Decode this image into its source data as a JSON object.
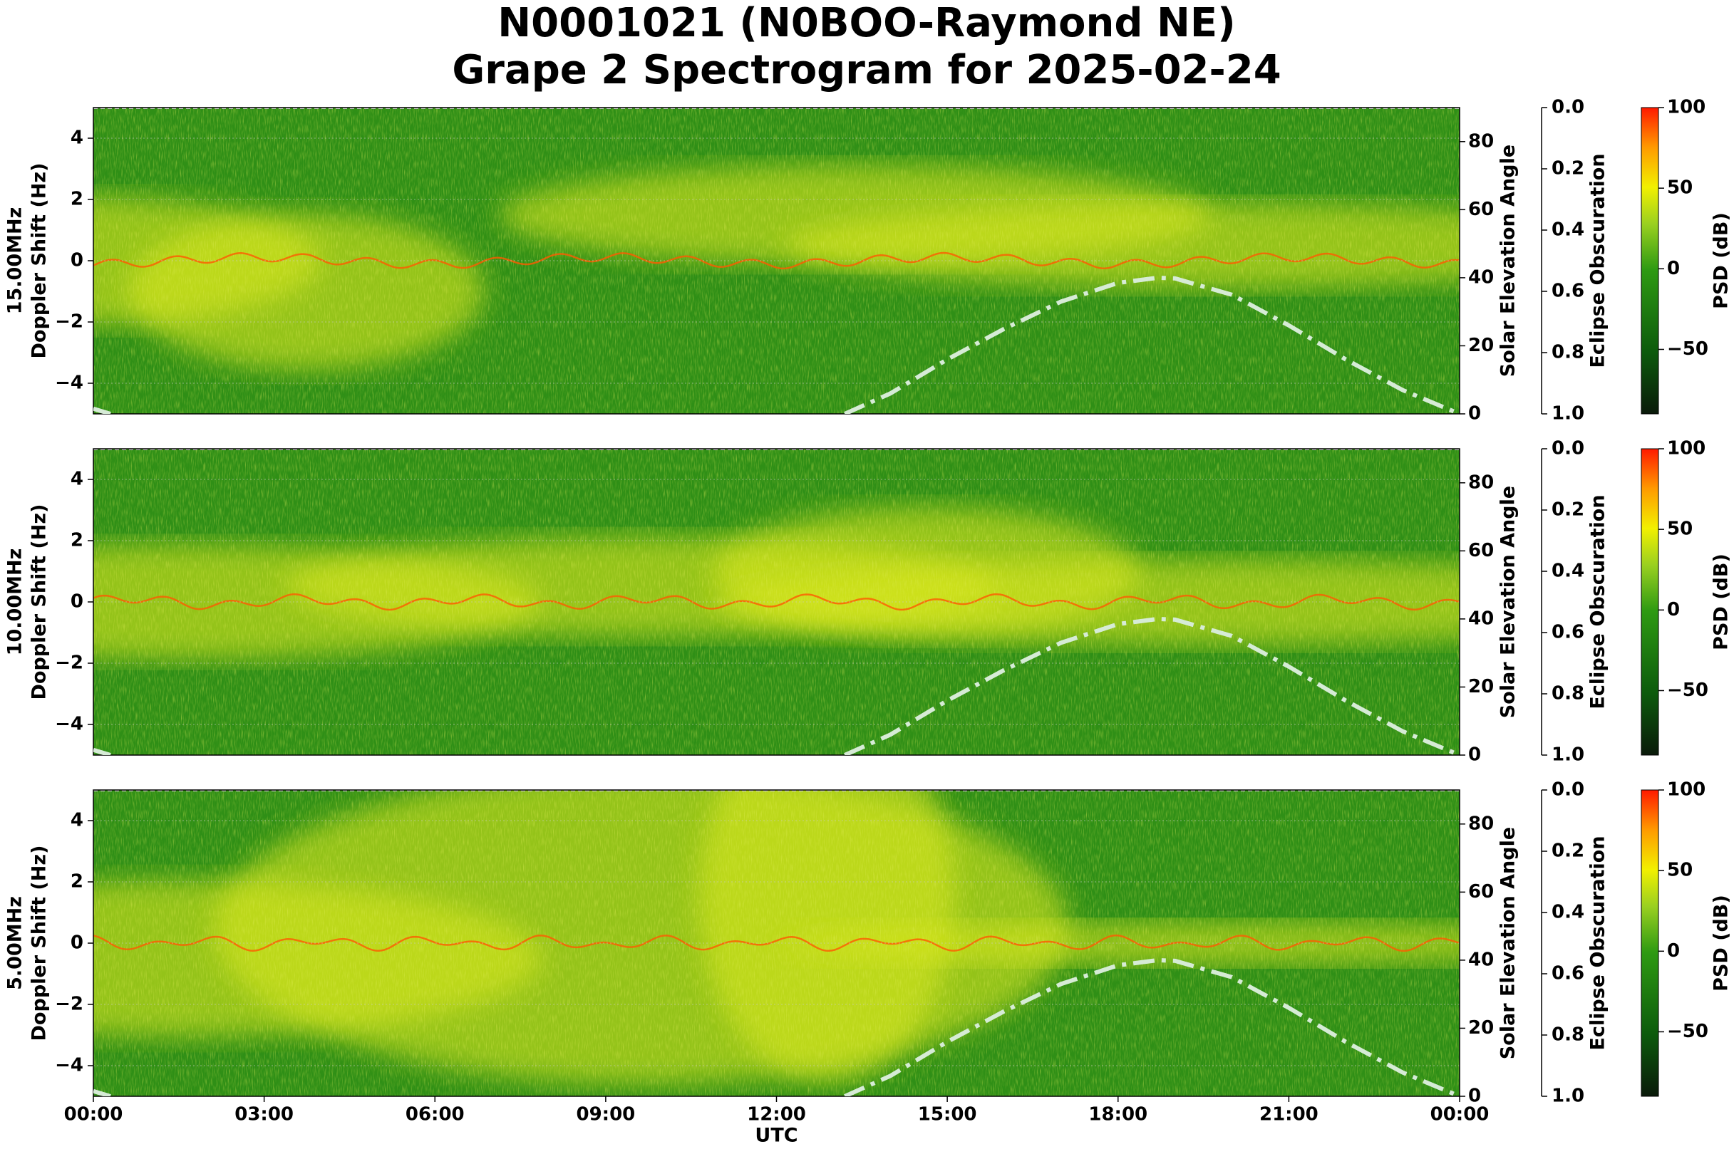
{
  "title": "N0001021 (N0BOO-Raymond NE)",
  "subtitle": "Grape 2 Spectrogram for 2025-02-24",
  "chart_data": [
    {
      "type": "spectrogram",
      "frequency_label": "15.00MHz",
      "ylabel": "Doppler Shift (Hz)",
      "xlim": [
        0,
        24
      ],
      "ylim": [
        -5,
        5
      ],
      "yticks": [
        {
          "value": -4,
          "label": "−4"
        },
        {
          "value": -2,
          "label": "−2"
        },
        0,
        2,
        4
      ],
      "grid": true,
      "y2label": "Solar Elevation Angle",
      "y2lim": [
        0,
        90
      ],
      "y2ticks": [
        0,
        20,
        40,
        60,
        80
      ],
      "y3label": "Eclipse Obscuration",
      "y3lim": [
        1,
        0
      ],
      "y3ticks": [
        {
          "value": 0,
          "label": "0.0"
        },
        {
          "value": 0.2,
          "label": "0.2"
        },
        {
          "value": 0.4,
          "label": "0.4"
        },
        {
          "value": 0.6,
          "label": "0.6"
        },
        {
          "value": 0.8,
          "label": "0.8"
        },
        {
          "value": 1,
          "label": "1.0"
        }
      ],
      "clabel": "PSD (dB)",
      "clim": [
        -90,
        100
      ],
      "cticks": [
        {
          "value": -50,
          "label": "−50"
        },
        0,
        50,
        100
      ],
      "solar_elevation": {
        "color": "#d6ebd6",
        "axis": "y2",
        "x": [
          0,
          0.3,
          6,
          13.2,
          14,
          15,
          16,
          17,
          18,
          18.7,
          19,
          20,
          21,
          22,
          23,
          24
        ],
        "values": [
          1.5,
          0,
          null,
          0,
          6,
          16,
          25,
          33,
          38.5,
          40,
          39.8,
          35,
          26,
          16,
          7,
          0
        ]
      }
    },
    {
      "type": "spectrogram",
      "frequency_label": "10.00MHz",
      "ylabel": "Doppler Shift (Hz)",
      "xlim": [
        0,
        24
      ],
      "ylim": [
        -5,
        5
      ],
      "yticks": [
        {
          "value": -4,
          "label": "−4"
        },
        {
          "value": -2,
          "label": "−2"
        },
        0,
        2,
        4
      ],
      "grid": true,
      "y2label": "Solar Elevation Angle",
      "y2lim": [
        0,
        90
      ],
      "y2ticks": [
        0,
        20,
        40,
        60,
        80
      ],
      "y3label": "Eclipse Obscuration",
      "y3lim": [
        1,
        0
      ],
      "y3ticks": [
        {
          "value": 0,
          "label": "0.0"
        },
        {
          "value": 0.2,
          "label": "0.2"
        },
        {
          "value": 0.4,
          "label": "0.4"
        },
        {
          "value": 0.6,
          "label": "0.6"
        },
        {
          "value": 0.8,
          "label": "0.8"
        },
        {
          "value": 1,
          "label": "1.0"
        }
      ],
      "clabel": "PSD (dB)",
      "clim": [
        -90,
        100
      ],
      "cticks": [
        {
          "value": -50,
          "label": "−50"
        },
        0,
        50,
        100
      ],
      "solar_elevation": {
        "color": "#d6ebd6",
        "axis": "y2",
        "x": [
          0,
          0.3,
          6,
          13.2,
          14,
          15,
          16,
          17,
          18,
          18.7,
          19,
          20,
          21,
          22,
          23,
          24
        ],
        "values": [
          1.5,
          0,
          null,
          0,
          6,
          16,
          25,
          33,
          38.5,
          40,
          39.8,
          35,
          26,
          16,
          7,
          0
        ]
      }
    },
    {
      "type": "spectrogram",
      "frequency_label": "5.00MHz",
      "ylabel": "Doppler Shift (Hz)",
      "xlim": [
        0,
        24
      ],
      "ylim": [
        -5,
        5
      ],
      "xlabel": "UTC",
      "xticks": [
        {
          "value": 0,
          "label": "00:00"
        },
        {
          "value": 3,
          "label": "03:00"
        },
        {
          "value": 6,
          "label": "06:00"
        },
        {
          "value": 9,
          "label": "09:00"
        },
        {
          "value": 12,
          "label": "12:00"
        },
        {
          "value": 15,
          "label": "15:00"
        },
        {
          "value": 18,
          "label": "18:00"
        },
        {
          "value": 21,
          "label": "21:00"
        },
        {
          "value": 24,
          "label": "00:00"
        }
      ],
      "yticks": [
        {
          "value": -4,
          "label": "−4"
        },
        {
          "value": -2,
          "label": "−2"
        },
        0,
        2,
        4
      ],
      "grid": true,
      "y2label": "Solar Elevation Angle",
      "y2lim": [
        0,
        90
      ],
      "y2ticks": [
        0,
        20,
        40,
        60,
        80
      ],
      "y3label": "Eclipse Obscuration",
      "y3lim": [
        1,
        0
      ],
      "y3ticks": [
        {
          "value": 0,
          "label": "0.0"
        },
        {
          "value": 0.2,
          "label": "0.2"
        },
        {
          "value": 0.4,
          "label": "0.4"
        },
        {
          "value": 0.6,
          "label": "0.6"
        },
        {
          "value": 0.8,
          "label": "0.8"
        },
        {
          "value": 1,
          "label": "1.0"
        }
      ],
      "clabel": "PSD (dB)",
      "clim": [
        -90,
        100
      ],
      "cticks": [
        {
          "value": -50,
          "label": "−50"
        },
        0,
        50,
        100
      ],
      "solar_elevation": {
        "color": "#d6ebd6",
        "axis": "y2",
        "x": [
          0,
          0.3,
          6,
          13.2,
          14,
          15,
          16,
          17,
          18,
          18.7,
          19,
          20,
          21,
          22,
          23,
          24
        ],
        "values": [
          1.5,
          0,
          null,
          0,
          6,
          16,
          25,
          33,
          38.5,
          40,
          39.8,
          35,
          26,
          16,
          7,
          0
        ]
      }
    }
  ]
}
